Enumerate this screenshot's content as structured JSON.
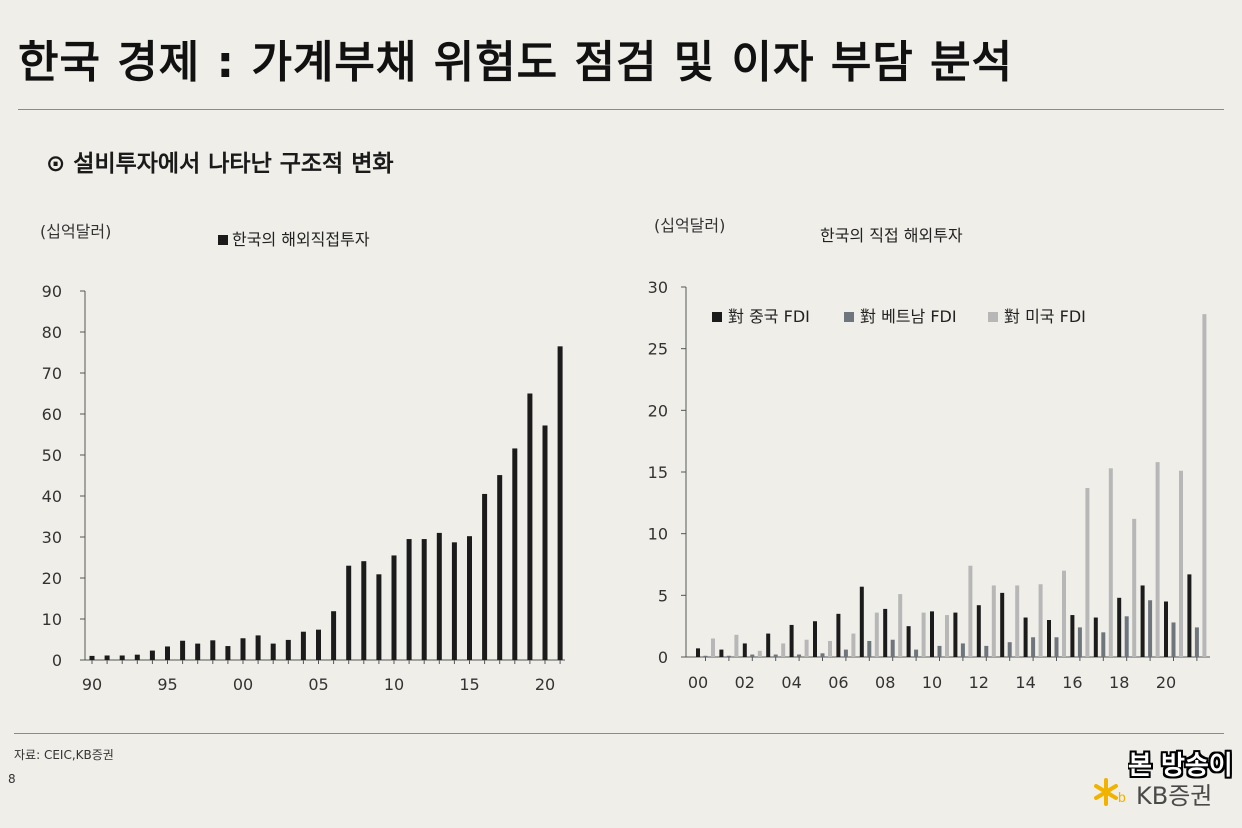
{
  "header": {
    "title": "한국 경제 : 가계부채 위험도 점검 및 이자 부담 분석",
    "subtitle": "⊙ 설비투자에서 나타난 구조적 변화"
  },
  "footer": {
    "source": "자료: CEIC,KB증권",
    "page_number": "8",
    "logo_text": "KB증권",
    "overlay_text": "본 방송이"
  },
  "chart_data": [
    {
      "type": "bar",
      "unit_label": "(십억달러)",
      "title": "한국의 해외직접투자",
      "legend": [
        {
          "name": "한국의 해외직접투자",
          "color": "#1b1b1b"
        }
      ],
      "x": [
        1990,
        1991,
        1992,
        1993,
        1994,
        1995,
        1996,
        1997,
        1998,
        1999,
        2000,
        2001,
        2002,
        2003,
        2004,
        2005,
        2006,
        2007,
        2008,
        2009,
        2010,
        2011,
        2012,
        2013,
        2014,
        2015,
        2016,
        2017,
        2018,
        2019,
        2020,
        2021
      ],
      "values": [
        1.0,
        1.1,
        1.1,
        1.3,
        2.3,
        3.3,
        4.7,
        4.0,
        4.8,
        3.4,
        5.3,
        6.0,
        4.0,
        4.9,
        6.9,
        7.4,
        11.9,
        23.0,
        24.1,
        20.9,
        25.5,
        29.5,
        29.5,
        31.0,
        28.7,
        30.2,
        40.5,
        45.1,
        51.6,
        65.0,
        57.2,
        76.5
      ],
      "xtick_labels": [
        "90",
        "95",
        "00",
        "05",
        "10",
        "15",
        "20"
      ],
      "ytick_labels": [
        "0",
        "10",
        "20",
        "30",
        "40",
        "50",
        "60",
        "70",
        "80",
        "90"
      ],
      "ylim": [
        0,
        90
      ],
      "series_color": "#1b1b1b"
    },
    {
      "type": "bar",
      "unit_label": "(십억달러)",
      "title": "한국의 직접 해외투자",
      "x": [
        2000,
        2001,
        2002,
        2003,
        2004,
        2005,
        2006,
        2007,
        2008,
        2009,
        2010,
        2011,
        2012,
        2013,
        2014,
        2015,
        2016,
        2017,
        2018,
        2019,
        2020,
        2021
      ],
      "series": [
        {
          "name": "對 중국 FDI",
          "color": "#1b1b1b",
          "values": [
            0.7,
            0.6,
            1.1,
            1.9,
            2.6,
            2.9,
            3.5,
            5.7,
            3.9,
            2.5,
            3.7,
            3.6,
            4.2,
            5.2,
            3.2,
            3.0,
            3.4,
            3.2,
            4.8,
            5.8,
            4.5,
            6.7
          ]
        },
        {
          "name": "對 베트남 FDI",
          "color": "#6e757d",
          "values": [
            0.1,
            0.1,
            0.2,
            0.2,
            0.2,
            0.3,
            0.6,
            1.3,
            1.4,
            0.6,
            0.9,
            1.1,
            0.9,
            1.2,
            1.6,
            1.6,
            2.4,
            2.0,
            3.3,
            4.6,
            2.8,
            2.4
          ]
        },
        {
          "name": "對 미국 FDI",
          "color": "#b7b7b7",
          "values": [
            1.5,
            1.8,
            0.5,
            1.1,
            1.4,
            1.3,
            1.9,
            3.6,
            5.1,
            3.6,
            3.4,
            7.4,
            5.8,
            5.8,
            5.9,
            7.0,
            13.7,
            15.3,
            11.2,
            15.8,
            15.1,
            27.8
          ]
        }
      ],
      "xtick_labels": [
        "00",
        "02",
        "04",
        "06",
        "08",
        "10",
        "12",
        "14",
        "16",
        "18",
        "20"
      ],
      "ytick_labels": [
        "0",
        "5",
        "10",
        "15",
        "20",
        "25",
        "30"
      ],
      "ylim": [
        0,
        30
      ],
      "legend_position": "top-left"
    }
  ]
}
